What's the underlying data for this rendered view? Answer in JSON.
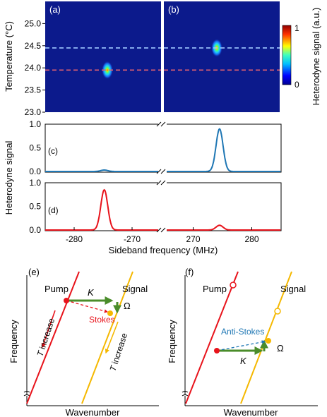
{
  "colors": {
    "red": "#e8131b",
    "blue": "#1f77b4",
    "gold": "#f5b800",
    "green": "#4a8c2a",
    "dash_red": "#e06070",
    "dash_blue": "#9ec8ff",
    "heat_bg": "#0c1a8c"
  },
  "panels": {
    "a": "(a)",
    "b": "(b)",
    "c": "(c)",
    "d": "(d)",
    "e": "(e)",
    "f": "(f)"
  },
  "heatmap": {
    "ylabel": "Temperature (°C)",
    "yticks": [
      "25.0",
      "24.5",
      "24.0",
      "23.5",
      "23.0"
    ],
    "ytick_values": [
      25.0,
      24.5,
      24.0,
      23.5,
      23.0
    ],
    "ylim": [
      23.0,
      25.5
    ],
    "dashed_lines": [
      24.45,
      23.95
    ],
    "colorbar_label": "Heterodyne signal (a.u.)",
    "colorbar_max": "1",
    "colorbar_min": "0"
  },
  "spectra": {
    "ylabel": "Heterodyne signal",
    "yticks": [
      "1.0",
      "0.5",
      "0.0"
    ],
    "xlabel": "Sideband frequency (MHz)",
    "xticks": [
      "-280",
      "-270",
      "270",
      "280"
    ]
  },
  "chart_data": [
    {
      "type": "heatmap",
      "panel": "a",
      "ylabel": "Temperature (°C)",
      "ylim": [
        23.0,
        25.5
      ],
      "peak": {
        "temperature": 23.95,
        "sideband_mhz": -274.5,
        "value": 1.0
      }
    },
    {
      "type": "heatmap",
      "panel": "b",
      "ylim": [
        23.0,
        25.5
      ],
      "peak": {
        "temperature": 24.45,
        "sideband_mhz": 274.5,
        "value": 1.0
      }
    },
    {
      "type": "line",
      "panel": "c",
      "ylabel": "Heterodyne signal",
      "ylim": [
        0,
        1.0
      ],
      "series": [
        {
          "left_peak_center": -274.8,
          "left_peak_height": 0.03,
          "right_peak_center": 274.5,
          "right_peak_height": 0.9,
          "color": "#1f77b4"
        }
      ]
    },
    {
      "type": "line",
      "panel": "d",
      "ylim": [
        0,
        1.0
      ],
      "xlabel": "Sideband frequency (MHz)",
      "series": [
        {
          "left_peak_center": -274.8,
          "left_peak_height": 0.85,
          "right_peak_center": 274.5,
          "right_peak_height": 0.1,
          "color": "#e8131b"
        }
      ]
    }
  ],
  "diagram_e": {
    "pump": "Pump",
    "signal": "Signal",
    "K": "K",
    "Omega": "Ω",
    "stokes": "Stokes",
    "t_increase_1": "T increase",
    "t_increase_2": "T increase",
    "ylabel": "Frequency",
    "xlabel": "Wavenumber"
  },
  "diagram_f": {
    "pump": "Pump",
    "signal": "Signal",
    "K": "K",
    "Omega": "Ω",
    "anti_stokes": "Anti-Stokes",
    "ylabel": "Frequency",
    "xlabel": "Wavenumber"
  }
}
